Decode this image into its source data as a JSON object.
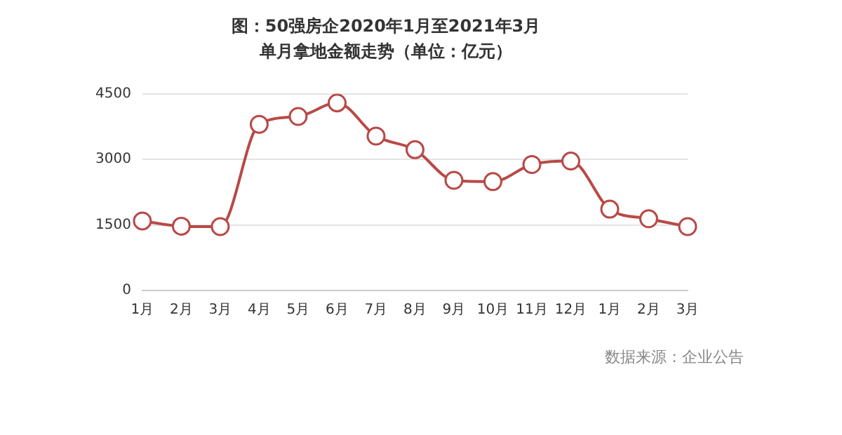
{
  "chart_data": {
    "type": "line",
    "title": "图：50强房企2020年1月至2021年3月",
    "subtitle": "单月拿地金额走势（单位：亿元）",
    "categories": [
      "1月",
      "2月",
      "3月",
      "4月",
      "5月",
      "6月",
      "7月",
      "8月",
      "9月",
      "10月",
      "11月",
      "12月",
      "1月",
      "2月",
      "3月"
    ],
    "series": [
      {
        "color": "#b84a47",
        "values": [
          1590,
          1470,
          1460,
          3800,
          3980,
          4290,
          3530,
          3220,
          2520,
          2490,
          2880,
          2960,
          1860,
          1640,
          1460
        ]
      }
    ],
    "ylim": [
      0,
      4500
    ],
    "yticks": [
      0,
      1500,
      3000,
      4500
    ],
    "grid": "y",
    "legend": false,
    "marker": "circle",
    "line_style": "solid",
    "annotations": [
      "数据来源：企业公告"
    ]
  }
}
